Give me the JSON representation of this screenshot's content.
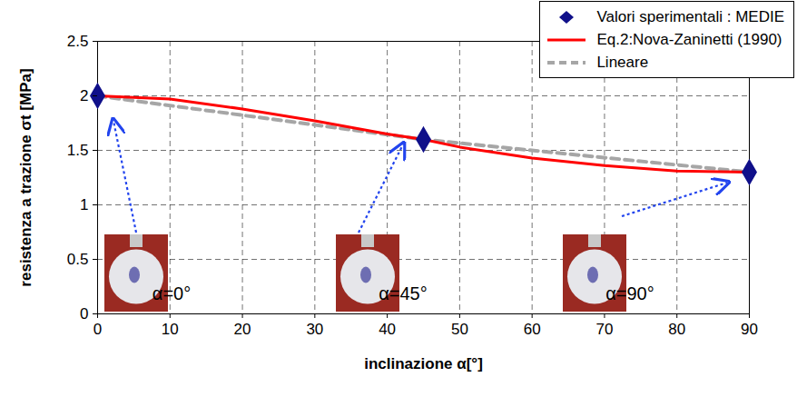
{
  "chart_data": {
    "type": "line",
    "xlabel": "inclinazione α[°]",
    "ylabel": "resistenza a trazione σt [MPa]",
    "xlim": [
      0,
      90
    ],
    "xticks": [
      0,
      10,
      20,
      30,
      40,
      50,
      60,
      70,
      80,
      90
    ],
    "ylim": [
      0,
      2.5
    ],
    "yticks": [
      0,
      0.5,
      1,
      1.5,
      2,
      2.5
    ],
    "grid": true,
    "legend": "top-right",
    "series": [
      {
        "name": "Valori sperimentali : MEDIE",
        "type": "scatter",
        "marker": "diamond",
        "color": "#10108a",
        "x": [
          0,
          45,
          90
        ],
        "values": [
          2.0,
          1.6,
          1.3
        ]
      },
      {
        "name": "Eq.2:Nova-Zaninetti (1990)",
        "type": "line",
        "line_style": "solid",
        "color": "#ff0000",
        "x": [
          0,
          10,
          20,
          30,
          40,
          45,
          50,
          60,
          70,
          80,
          90
        ],
        "values": [
          2.0,
          1.97,
          1.88,
          1.77,
          1.65,
          1.6,
          1.53,
          1.43,
          1.36,
          1.31,
          1.3
        ]
      },
      {
        "name": "Lineare",
        "type": "line",
        "line_style": "dashed",
        "color": "#a6a6a6",
        "x": [
          0,
          45,
          90
        ],
        "values": [
          2.0,
          1.6,
          1.3
        ]
      }
    ],
    "annotations": [
      "α=0°",
      "α=45°",
      "α=90°"
    ]
  }
}
